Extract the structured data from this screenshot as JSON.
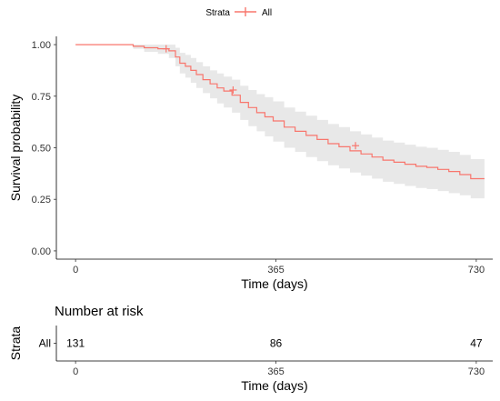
{
  "chart_data": {
    "type": "line",
    "legend": {
      "title": "Strata",
      "placement": "top",
      "entries": [
        "All"
      ]
    },
    "color": "#F8766D",
    "band_color": "#BDBDBD",
    "xlabel": "Time (days)",
    "ylabel": "Survival probability",
    "xlim": [
      -35,
      760
    ],
    "ylim": [
      -0.04,
      1.04
    ],
    "x_ticks": [
      0,
      365,
      730
    ],
    "x_tick_labels": [
      "0",
      "365",
      "730"
    ],
    "y_ticks": [
      0,
      0.25,
      0.5,
      0.75,
      1
    ],
    "y_tick_labels": [
      "0.00",
      "0.25",
      "0.50",
      "0.75",
      "1.00"
    ],
    "grid": false,
    "series": [
      {
        "name": "All",
        "step": true,
        "x": [
          0,
          105,
          125,
          150,
          170,
          182,
          190,
          200,
          210,
          220,
          232,
          245,
          258,
          270,
          285,
          300,
          315,
          330,
          345,
          360,
          380,
          400,
          420,
          440,
          460,
          480,
          500,
          520,
          540,
          560,
          580,
          600,
          620,
          640,
          660,
          680,
          700,
          720,
          745
        ],
        "y": [
          1.0,
          0.992,
          0.985,
          0.98,
          0.97,
          0.94,
          0.91,
          0.895,
          0.875,
          0.855,
          0.83,
          0.81,
          0.79,
          0.775,
          0.755,
          0.72,
          0.695,
          0.67,
          0.65,
          0.63,
          0.6,
          0.58,
          0.56,
          0.54,
          0.52,
          0.505,
          0.485,
          0.47,
          0.455,
          0.44,
          0.43,
          0.42,
          0.41,
          0.405,
          0.395,
          0.385,
          0.37,
          0.35,
          0.35
        ],
        "lower": [
          1.0,
          0.98,
          0.965,
          0.955,
          0.935,
          0.895,
          0.86,
          0.84,
          0.815,
          0.79,
          0.765,
          0.74,
          0.715,
          0.695,
          0.67,
          0.635,
          0.605,
          0.58,
          0.555,
          0.53,
          0.5,
          0.48,
          0.455,
          0.435,
          0.415,
          0.4,
          0.38,
          0.365,
          0.35,
          0.335,
          0.325,
          0.315,
          0.305,
          0.3,
          0.29,
          0.28,
          0.27,
          0.255,
          0.255
        ],
        "upper": [
          1.0,
          1.0,
          1.0,
          1.0,
          1.0,
          0.985,
          0.96,
          0.95,
          0.935,
          0.915,
          0.895,
          0.875,
          0.86,
          0.845,
          0.83,
          0.8,
          0.78,
          0.76,
          0.745,
          0.725,
          0.695,
          0.675,
          0.655,
          0.635,
          0.615,
          0.6,
          0.58,
          0.565,
          0.55,
          0.535,
          0.525,
          0.515,
          0.505,
          0.5,
          0.49,
          0.48,
          0.465,
          0.445,
          0.445
        ],
        "censor_x": [
          165,
          287,
          510
        ],
        "censor_y": [
          0.98,
          0.78,
          0.51
        ]
      }
    ]
  },
  "risk_table": {
    "title": "Number at risk",
    "ylabel": "Strata",
    "xlabel": "Time (days)",
    "rows": [
      {
        "label": "All",
        "times": [
          0,
          365,
          730
        ],
        "counts": [
          "131",
          "86",
          "47"
        ]
      }
    ]
  }
}
